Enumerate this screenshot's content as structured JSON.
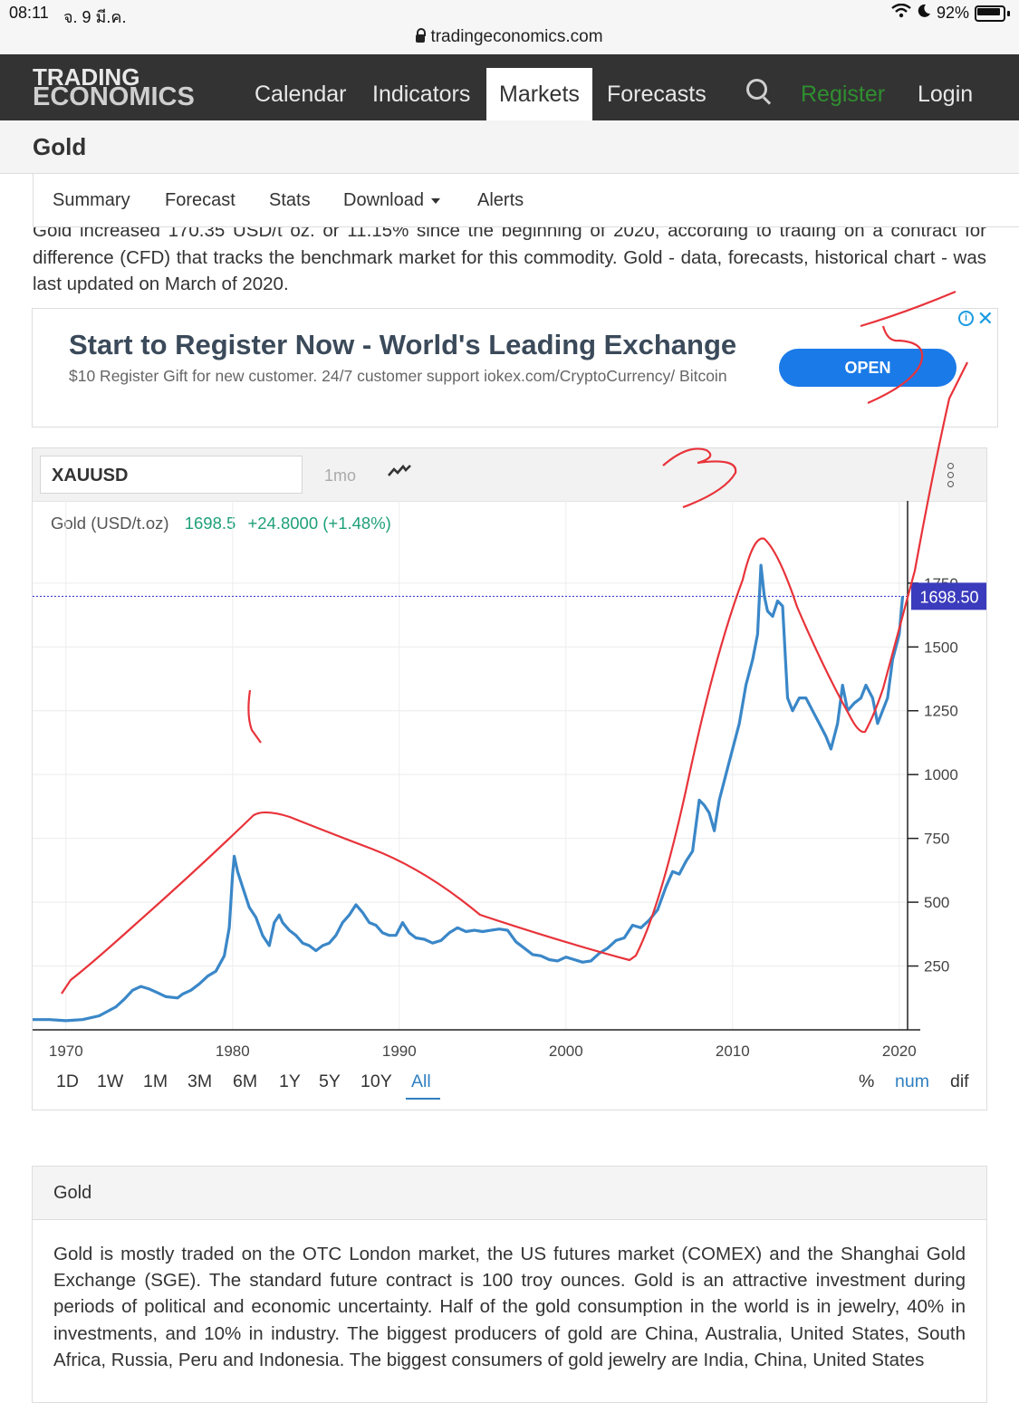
{
  "status": {
    "time": "08:11",
    "date": "จ. 9 มี.ค.",
    "battery": "92%"
  },
  "browser": {
    "url": "tradingeconomics.com"
  },
  "nav": {
    "logo_line1": "TRADING",
    "logo_line2": "ECONOMICS",
    "items": [
      "Calendar",
      "Indicators",
      "Markets",
      "Forecasts"
    ],
    "active": "Markets",
    "register": "Register",
    "login": "Login"
  },
  "page": {
    "title": "Gold"
  },
  "tabs": [
    "Summary",
    "Forecast",
    "Stats",
    "Download",
    "Alerts"
  ],
  "intro": {
    "text": "Gold increased 170.35 USD/t oz. or 11.15% since the beginning of 2020, according to trading on a contract for difference (CFD) that tracks the benchmark market for this commodity. Gold - data, forecasts, historical chart - was last updated on March of 2020."
  },
  "ad": {
    "headline": "Start to Register Now - World's Leading Exchange",
    "sub": "$10 Register Gift for new customer. 24/7 customer support iokex.com/CryptoCurrency/ Bitcoin",
    "button": "OPEN",
    "info": "i",
    "close": "✕"
  },
  "chart_toolbar": {
    "symbol": "XAUUSD",
    "interval": "1mo"
  },
  "chart_legend": {
    "name": "Gold (USD/t.oz)",
    "price": "1698.5",
    "change": "+24.8000 (+1.48%)"
  },
  "ranges": [
    "1D",
    "1W",
    "1M",
    "3M",
    "6M",
    "1Y",
    "5Y",
    "10Y",
    "All"
  ],
  "range_selected": "All",
  "modes": [
    "%",
    "num",
    "dif"
  ],
  "mode_selected": "num",
  "chart_data": {
    "type": "line",
    "title": "Gold (USD/t.oz)",
    "xlabel": "",
    "ylabel": "",
    "x_ticks": [
      1970,
      1980,
      1990,
      2000,
      2010,
      2020
    ],
    "y_ticks": [
      250,
      500,
      750,
      1000,
      1250,
      1500,
      1750
    ],
    "xlim": [
      1968,
      2020.5
    ],
    "ylim": [
      0,
      1980
    ],
    "last_value_label": "1698.50",
    "last_value": 1698.5,
    "grid": true,
    "series": [
      {
        "color": "#3a87c8",
        "x": [
          1968.0,
          1969.0,
          1970.0,
          1971.0,
          1972.0,
          1973.0,
          1973.5,
          1974.0,
          1974.5,
          1975.0,
          1975.5,
          1976.0,
          1976.7,
          1977.0,
          1977.5,
          1978.0,
          1978.5,
          1979.0,
          1979.5,
          1979.8,
          1980.0,
          1980.1,
          1980.3,
          1980.6,
          1981.0,
          1981.4,
          1981.8,
          1982.2,
          1982.5,
          1982.8,
          1983.0,
          1983.4,
          1983.8,
          1984.2,
          1984.6,
          1985.0,
          1985.4,
          1985.8,
          1986.2,
          1986.6,
          1987.0,
          1987.4,
          1987.8,
          1988.2,
          1988.6,
          1989.0,
          1989.4,
          1989.8,
          1990.2,
          1990.6,
          1991.0,
          1991.5,
          1992.0,
          1992.5,
          1993.0,
          1993.5,
          1994.0,
          1994.5,
          1995.0,
          1995.5,
          1996.0,
          1996.5,
          1997.0,
          1997.5,
          1998.0,
          1998.5,
          1999.0,
          1999.5,
          2000.0,
          2000.5,
          2001.0,
          2001.5,
          2002.0,
          2002.5,
          2003.0,
          2003.5,
          2004.0,
          2004.5,
          2005.0,
          2005.5,
          2006.0,
          2006.4,
          2006.8,
          2007.2,
          2007.6,
          2008.0,
          2008.3,
          2008.6,
          2008.9,
          2009.2,
          2009.6,
          2010.0,
          2010.4,
          2010.8,
          2011.2,
          2011.5,
          2011.7,
          2011.9,
          2012.1,
          2012.4,
          2012.7,
          2013.0,
          2013.3,
          2013.6,
          2014.0,
          2014.4,
          2014.8,
          2015.2,
          2015.6,
          2015.9,
          2016.3,
          2016.6,
          2016.9,
          2017.3,
          2017.7,
          2018.0,
          2018.4,
          2018.7,
          2019.0,
          2019.3,
          2019.6,
          2020.0,
          2020.2
        ],
        "y": [
          40,
          40,
          36,
          40,
          55,
          90,
          120,
          155,
          170,
          160,
          145,
          130,
          125,
          140,
          155,
          180,
          210,
          230,
          290,
          400,
          610,
          680,
          620,
          560,
          480,
          440,
          370,
          330,
          420,
          450,
          420,
          390,
          370,
          340,
          330,
          310,
          330,
          340,
          370,
          420,
          450,
          490,
          460,
          420,
          410,
          380,
          370,
          370,
          420,
          380,
          360,
          355,
          340,
          350,
          380,
          400,
          385,
          390,
          385,
          390,
          395,
          390,
          345,
          320,
          295,
          290,
          275,
          270,
          285,
          275,
          265,
          270,
          300,
          320,
          350,
          360,
          410,
          400,
          430,
          470,
          560,
          620,
          610,
          660,
          700,
          900,
          880,
          850,
          780,
          900,
          1000,
          1100,
          1200,
          1350,
          1450,
          1550,
          1820,
          1700,
          1640,
          1620,
          1680,
          1660,
          1300,
          1250,
          1300,
          1300,
          1250,
          1200,
          1150,
          1100,
          1200,
          1350,
          1250,
          1280,
          1300,
          1350,
          1300,
          1200,
          1250,
          1300,
          1450,
          1550,
          1698.5
        ]
      }
    ]
  }
}
